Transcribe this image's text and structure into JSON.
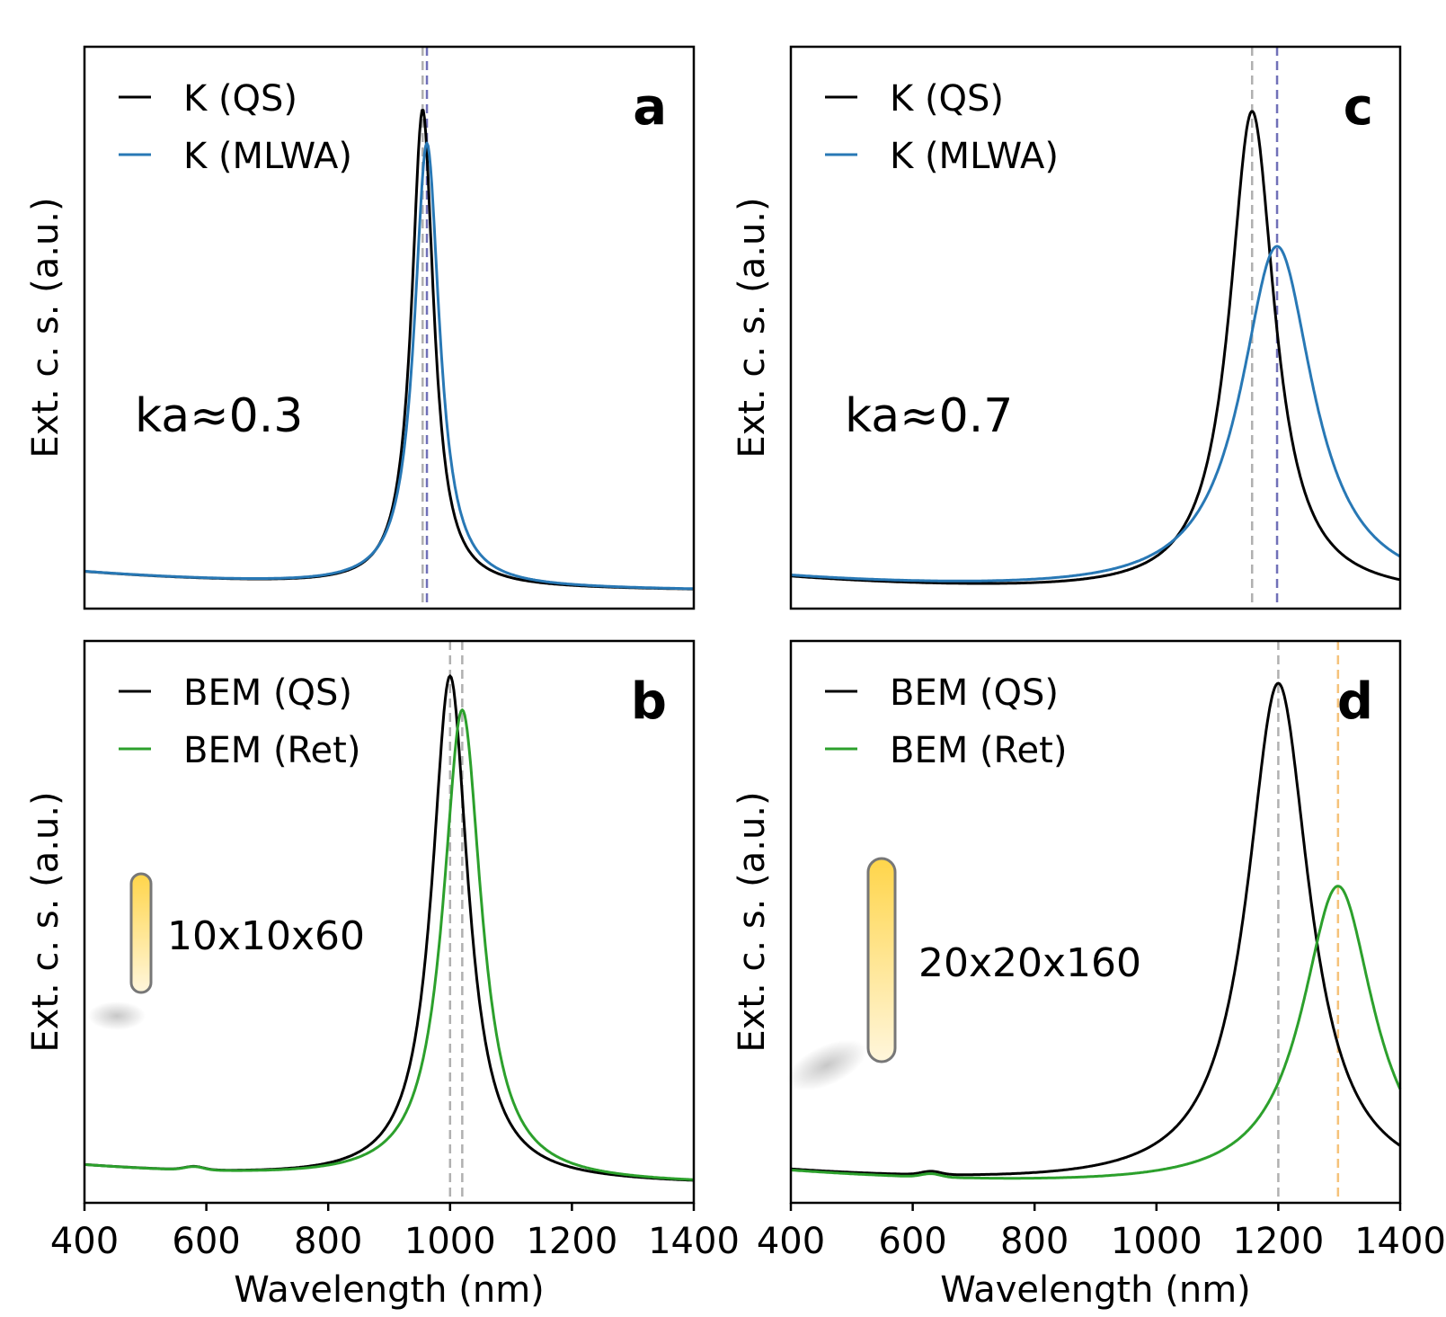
{
  "colors": {
    "qs": "#000000",
    "mlwa": "#2878b5",
    "ret": "#2ca02c",
    "vline_gray": "#b0b0b0",
    "vline_blue": "#7070b8",
    "vline_orange": "#f5c27a",
    "rod_fill_top": "#ffd54a",
    "rod_fill_bottom": "#fff6dc",
    "rod_stroke": "#777777"
  },
  "chart_data": [
    {
      "id": "a",
      "type": "line",
      "panel_letter": "a",
      "annotation": "ka≈0.3",
      "ylabel": "Ext. c. s. (a.u.)",
      "xlabel": "",
      "xlim": [
        400,
        1400
      ],
      "ylim": [
        0,
        1
      ],
      "show_x_ticks": false,
      "legend_position": "top-left",
      "series": [
        {
          "name": "K (QS)",
          "color_key": "qs",
          "peak": 955,
          "gamma": 22,
          "amp": 0.85,
          "base": 0.03
        },
        {
          "name": "K (MLWA)",
          "color_key": "mlwa",
          "peak": 962,
          "gamma": 25,
          "amp": 0.79,
          "base": 0.03
        }
      ],
      "vlines": [
        {
          "x": 955,
          "color_key": "vline_gray"
        },
        {
          "x": 962,
          "color_key": "vline_blue"
        }
      ]
    },
    {
      "id": "c",
      "type": "line",
      "panel_letter": "c",
      "annotation": "ka≈0.7",
      "ylabel": "Ext. c. s. (a.u.)",
      "xlabel": "",
      "xlim": [
        400,
        1400
      ],
      "ylim": [
        0,
        1
      ],
      "show_x_ticks": false,
      "legend_position": "top-left",
      "series": [
        {
          "name": "K (QS)",
          "color_key": "qs",
          "peak": 1157,
          "gamma": 45,
          "amp": 0.86,
          "base": 0.02
        },
        {
          "name": "K (MLWA)",
          "color_key": "mlwa",
          "peak": 1198,
          "gamma": 72,
          "amp": 0.62,
          "base": 0.02
        }
      ],
      "vlines": [
        {
          "x": 1157,
          "color_key": "vline_gray"
        },
        {
          "x": 1198,
          "color_key": "vline_blue"
        }
      ]
    },
    {
      "id": "b",
      "type": "line",
      "panel_letter": "b",
      "annotation": "10x10x60",
      "ylabel": "Ext. c. s. (a.u.)",
      "xlabel": "Wavelength (nm)",
      "xlim": [
        400,
        1400
      ],
      "ylim": [
        0,
        1
      ],
      "show_x_ticks": true,
      "x_ticks": [
        "400",
        "600",
        "800",
        "1000",
        "1200",
        "1400"
      ],
      "legend_position": "top-left",
      "series": [
        {
          "name": "BEM (QS)",
          "color_key": "qs",
          "peak": 1000,
          "gamma": 36,
          "amp": 0.9,
          "base": 0.03
        },
        {
          "name": "BEM (Ret)",
          "color_key": "ret",
          "peak": 1020,
          "gamma": 38,
          "amp": 0.84,
          "base": 0.03
        }
      ],
      "vlines": [
        {
          "x": 1000,
          "color_key": "vline_gray"
        },
        {
          "x": 1020,
          "color_key": "vline_gray"
        }
      ],
      "rod": "small"
    },
    {
      "id": "d",
      "type": "line",
      "panel_letter": "d",
      "annotation": "20x20x160",
      "ylabel": "Ext. c. s. (a.u.)",
      "xlabel": "Wavelength (nm)",
      "xlim": [
        400,
        1400
      ],
      "ylim": [
        0,
        1
      ],
      "show_x_ticks": true,
      "x_ticks": [
        "400",
        "600",
        "800",
        "1000",
        "1200",
        "1400"
      ],
      "legend_position": "top-left",
      "series": [
        {
          "name": "BEM (QS)",
          "color_key": "qs",
          "peak": 1200,
          "gamma": 62,
          "amp": 0.9,
          "base": 0.02
        },
        {
          "name": "BEM (Ret)",
          "color_key": "ret",
          "peak": 1298,
          "gamma": 72,
          "amp": 0.54,
          "base": 0.02
        }
      ],
      "vlines": [
        {
          "x": 1200,
          "color_key": "vline_gray"
        },
        {
          "x": 1298,
          "color_key": "vline_orange"
        }
      ],
      "rod": "large"
    }
  ]
}
